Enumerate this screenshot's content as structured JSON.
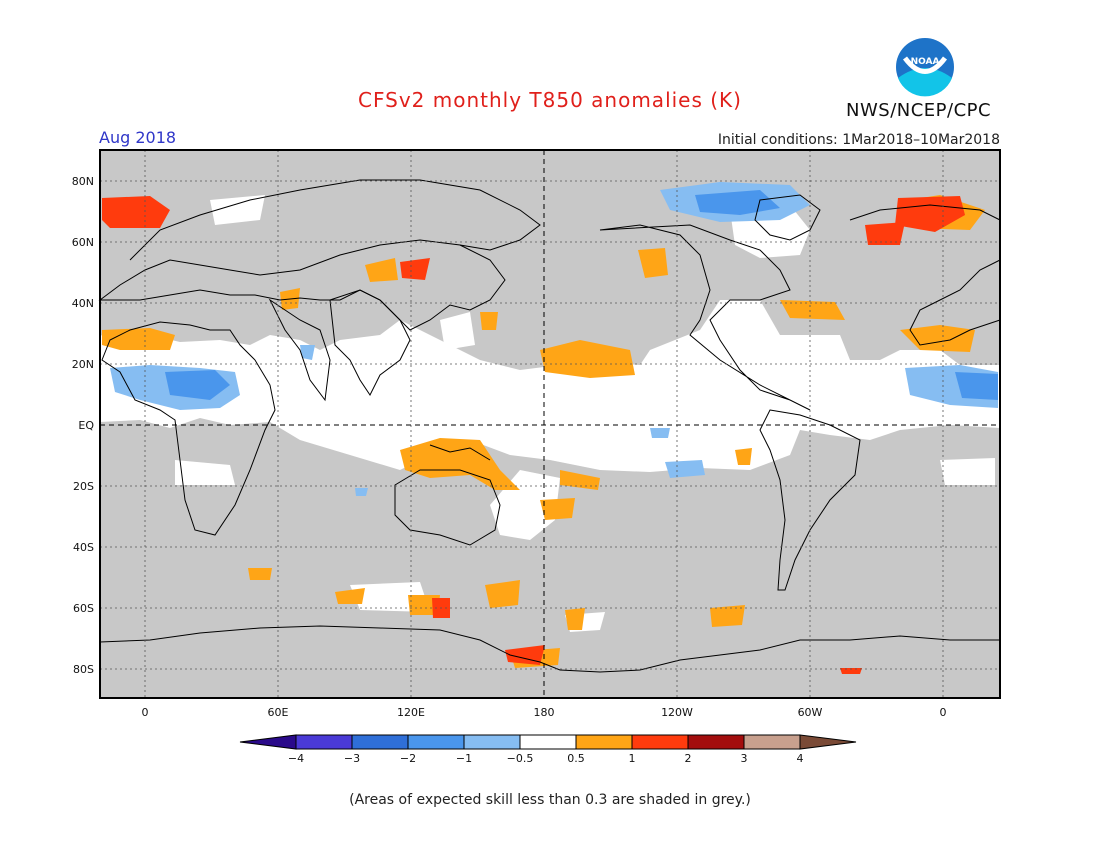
{
  "title": "CFSv2 monthly T850 anomalies (K)",
  "valid_month": "Aug 2018",
  "initial_conditions": "Initial conditions: 1Mar2018–10Mar2018",
  "organization": "NWS/NCEP/CPC",
  "logo_text": "NOAA",
  "footnote": "(Areas of expected skill less than 0.3 are shaded in grey.)",
  "lat_labels": [
    "80N",
    "60N",
    "40N",
    "20N",
    "EQ",
    "20S",
    "40S",
    "60S",
    "80S"
  ],
  "lon_labels": [
    "0",
    "60E",
    "120E",
    "180",
    "120W",
    "60W",
    "0"
  ],
  "colorbar": {
    "labels": [
      "−4",
      "−3",
      "−2",
      "−1",
      "−0.5",
      "0.5",
      "1",
      "2",
      "3",
      "4"
    ],
    "colors": [
      "#2a0a8a",
      "#4a3ad6",
      "#2f6fd8",
      "#4a96ec",
      "#86bdf2",
      "#ffffff",
      "#ffa516",
      "#ff3b0d",
      "#a30d0d",
      "#c8a08e",
      "#7a4a36"
    ]
  },
  "colors": {
    "skill_grey": "#c8c8c8",
    "warm_1": "#ffa516",
    "warm_2": "#ff3b0d",
    "cool_1": "#86bdf2",
    "cool_2": "#4a96ec"
  }
}
